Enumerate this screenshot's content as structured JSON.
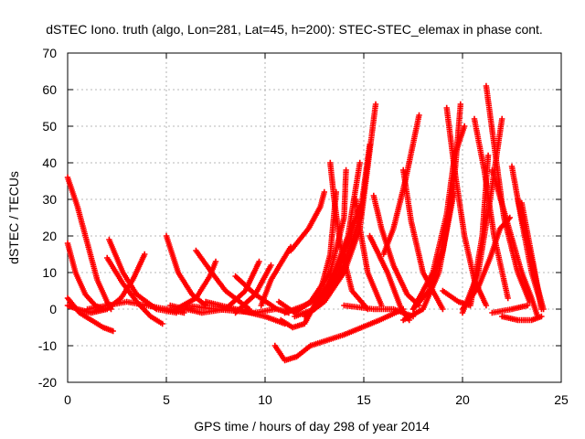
{
  "chart_data": {
    "type": "scatter",
    "title": "dSTEC Iono. truth (algo, Lon=281, Lat=45, h=200): STEC-STEC_elemax in phase cont.",
    "xlabel": "GPS time / hours of day 298 of year 2014",
    "ylabel": "dSTEC  / TECUs",
    "xlim": [
      0,
      25
    ],
    "ylim": [
      -20,
      70
    ],
    "x_ticks": [
      0,
      5,
      10,
      15,
      20,
      25
    ],
    "y_ticks": [
      -20,
      -10,
      0,
      10,
      20,
      30,
      40,
      50,
      60,
      70
    ],
    "grid": true,
    "legend": "none",
    "marker": "plus",
    "color": "#ff0000",
    "series": [
      {
        "x": [
          0.0,
          0.5,
          1.0,
          1.5,
          2.0,
          2.2
        ],
        "y": [
          36,
          28,
          18,
          8,
          2,
          0
        ]
      },
      {
        "x": [
          0.0,
          0.4,
          0.9,
          1.4,
          1.8
        ],
        "y": [
          18,
          10,
          4,
          1,
          0
        ]
      },
      {
        "x": [
          0.0,
          0.6,
          1.2,
          1.8,
          2.3
        ],
        "y": [
          3,
          -1,
          -3,
          -5,
          -6
        ]
      },
      {
        "x": [
          0.0,
          0.5,
          1.2,
          2.0,
          2.7,
          3.3,
          3.9
        ],
        "y": [
          1,
          0,
          -1,
          0,
          3,
          8,
          15
        ]
      },
      {
        "x": [
          2.0,
          2.8,
          3.5,
          4.2,
          4.8
        ],
        "y": [
          14,
          7,
          2,
          -2,
          -4
        ]
      },
      {
        "x": [
          2.1,
          2.8,
          3.5,
          4.5,
          5.5
        ],
        "y": [
          19,
          10,
          4,
          0,
          -1
        ]
      },
      {
        "x": [
          1.0,
          2.0,
          3.0,
          4.0,
          5.0,
          5.9
        ],
        "y": [
          0,
          1,
          2,
          1,
          0,
          -1
        ]
      },
      {
        "x": [
          5.0,
          5.6,
          6.3,
          7.0
        ],
        "y": [
          20,
          10,
          4,
          1
        ]
      },
      {
        "x": [
          5.5,
          6.5,
          7.2,
          7.5
        ],
        "y": [
          0,
          3,
          9,
          13
        ]
      },
      {
        "x": [
          6.5,
          7.3,
          8.0,
          9.2
        ],
        "y": [
          16,
          10,
          5,
          0
        ]
      },
      {
        "x": [
          5.2,
          6.8,
          8.0,
          9.0,
          9.7
        ],
        "y": [
          1,
          -1,
          0,
          5,
          13
        ]
      },
      {
        "x": [
          6.0,
          7.5,
          9.5,
          10.5
        ],
        "y": [
          1,
          0,
          -1,
          0
        ]
      },
      {
        "x": [
          7.0,
          8.5,
          10.0,
          11.0
        ],
        "y": [
          2,
          0,
          -2,
          -4
        ]
      },
      {
        "x": [
          8.5,
          9.5,
          10.6,
          11.2
        ],
        "y": [
          9,
          4,
          0,
          -1
        ]
      },
      {
        "x": [
          8.5,
          9.5,
          10.3
        ],
        "y": [
          -1,
          4,
          12
        ]
      },
      {
        "x": [
          9.8,
          10.3,
          11.3
        ],
        "y": [
          1,
          8,
          17
        ]
      },
      {
        "x": [
          10.5,
          11.0,
          11.6,
          12.3
        ],
        "y": [
          -10,
          -14,
          -13,
          -10
        ]
      },
      {
        "x": [
          12.3,
          14.0,
          15.8,
          17.0
        ],
        "y": [
          -10,
          -7,
          -3,
          0
        ]
      },
      {
        "x": [
          10.8,
          11.4,
          12.0,
          12.7,
          13.3,
          13.6
        ],
        "y": [
          -3,
          -5,
          -4,
          3,
          15,
          32
        ]
      },
      {
        "x": [
          10.7,
          11.5,
          12.3,
          13.3,
          14.0,
          14.1
        ],
        "y": [
          2,
          -1,
          2,
          10,
          25,
          38
        ]
      },
      {
        "x": [
          11.0,
          12.0,
          12.8,
          13.5,
          14.2,
          14.8
        ],
        "y": [
          -1,
          1,
          3,
          10,
          20,
          40
        ]
      },
      {
        "x": [
          11.5,
          12.5,
          13.3,
          14.0,
          14.8,
          15.3
        ],
        "y": [
          -2,
          0,
          5,
          12,
          25,
          45
        ]
      },
      {
        "x": [
          12.0,
          13.0,
          14.0,
          14.8,
          15.6
        ],
        "y": [
          -2,
          2,
          10,
          22,
          56
        ]
      },
      {
        "x": [
          12.0,
          13.0,
          13.8,
          14.4,
          14.8
        ],
        "y": [
          1,
          4,
          12,
          22,
          28
        ]
      },
      {
        "x": [
          11.3,
          12.2,
          12.8,
          13.0
        ],
        "y": [
          16,
          22,
          28,
          32
        ]
      },
      {
        "x": [
          13.3,
          13.5,
          13.8,
          14.4,
          15.2
        ],
        "y": [
          40,
          30,
          18,
          5,
          0
        ]
      },
      {
        "x": [
          14.6,
          14.8,
          15.2,
          15.9
        ],
        "y": [
          30,
          22,
          10,
          1
        ]
      },
      {
        "x": [
          14.0,
          15.5,
          16.5,
          17.5
        ],
        "y": [
          1,
          0,
          0,
          -2
        ]
      },
      {
        "x": [
          15.5,
          15.9,
          16.5,
          17.2,
          17.8
        ],
        "y": [
          31,
          22,
          12,
          4,
          1
        ]
      },
      {
        "x": [
          15.3,
          16.2,
          16.9,
          17.3
        ],
        "y": [
          20,
          10,
          0,
          -3
        ]
      },
      {
        "x": [
          16.0,
          16.5,
          17.1,
          17.8
        ],
        "y": [
          15,
          22,
          35,
          53
        ]
      },
      {
        "x": [
          17.0,
          17.4,
          18.0,
          19.0
        ],
        "y": [
          38,
          24,
          10,
          0
        ]
      },
      {
        "x": [
          17.0,
          18.0,
          18.8,
          19.5,
          19.9
        ],
        "y": [
          -3,
          0,
          10,
          30,
          56
        ]
      },
      {
        "x": [
          17.5,
          18.3,
          19.0,
          19.5
        ],
        "y": [
          0,
          5,
          16,
          32
        ]
      },
      {
        "x": [
          17.5,
          18.5,
          19.2,
          19.6,
          20.1
        ],
        "y": [
          0,
          10,
          26,
          42,
          50
        ]
      },
      {
        "x": [
          19.2,
          19.6,
          20.1,
          20.6,
          21.2
        ],
        "y": [
          55,
          38,
          20,
          8,
          1
        ]
      },
      {
        "x": [
          19.0,
          19.8,
          20.4,
          21.0,
          21.3
        ],
        "y": [
          5,
          2,
          1,
          20,
          42
        ]
      },
      {
        "x": [
          20.0,
          20.8,
          21.4,
          22.0
        ],
        "y": [
          -1,
          10,
          30,
          52
        ]
      },
      {
        "x": [
          20.0,
          20.8,
          21.4,
          21.9,
          22.4
        ],
        "y": [
          0,
          6,
          14,
          22,
          25
        ]
      },
      {
        "x": [
          20.6,
          21.1,
          21.6,
          22.3
        ],
        "y": [
          52,
          38,
          20,
          3
        ]
      },
      {
        "x": [
          21.2,
          21.6,
          22.1,
          22.8,
          23.4
        ],
        "y": [
          61,
          45,
          25,
          10,
          2
        ]
      },
      {
        "x": [
          21.5,
          22.2,
          23.0,
          23.5,
          23.8
        ],
        "y": [
          38,
          25,
          10,
          3,
          -2
        ]
      },
      {
        "x": [
          22.5,
          23.0,
          23.5,
          24.0
        ],
        "y": [
          39,
          24,
          10,
          1
        ]
      },
      {
        "x": [
          22.8,
          23.3,
          23.8,
          24.1
        ],
        "y": [
          30,
          18,
          6,
          0
        ]
      },
      {
        "x": [
          23.0,
          23.6,
          24.0
        ],
        "y": [
          29,
          12,
          0
        ]
      },
      {
        "x": [
          22.0,
          22.8,
          23.5,
          24.0
        ],
        "y": [
          -2,
          -3,
          -3,
          -2
        ]
      },
      {
        "x": [
          21.5,
          22.5,
          23.3
        ],
        "y": [
          -1,
          0,
          1
        ]
      }
    ]
  }
}
